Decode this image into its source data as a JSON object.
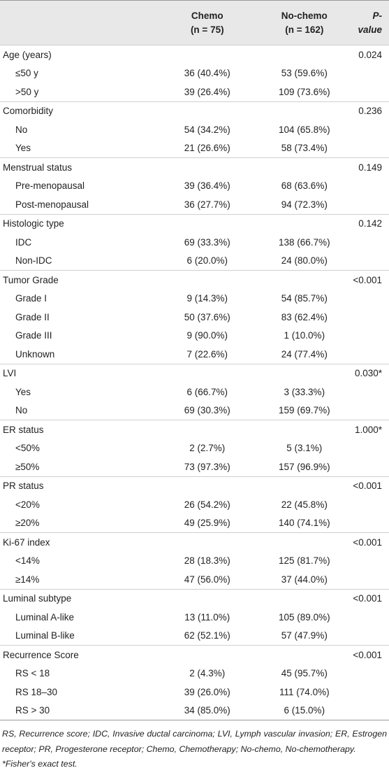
{
  "header": {
    "columns": [
      {
        "title": "Chemo",
        "sub": "(n = 75)"
      },
      {
        "title": "No-chemo",
        "sub": "(n = 162)"
      },
      {
        "title": "P-value"
      }
    ]
  },
  "table": {
    "groups": [
      {
        "label": "Age (years)",
        "p": "0.024",
        "rows": [
          [
            "≤50 y",
            "36 (40.4%)",
            "53 (59.6%)"
          ],
          [
            ">50 y",
            "39 (26.4%)",
            "109 (73.6%)"
          ]
        ]
      },
      {
        "label": "Comorbidity",
        "p": "0.236",
        "rows": [
          [
            "No",
            "54 (34.2%)",
            "104 (65.8%)"
          ],
          [
            "Yes",
            "21 (26.6%)",
            "58 (73.4%)"
          ]
        ]
      },
      {
        "label": "Menstrual status",
        "p": "0.149",
        "rows": [
          [
            "Pre-menopausal",
            "39 (36.4%)",
            "68 (63.6%)"
          ],
          [
            "Post-menopausal",
            "36 (27.7%)",
            "94 (72.3%)"
          ]
        ]
      },
      {
        "label": "Histologic type",
        "p": "0.142",
        "rows": [
          [
            "IDC",
            "69 (33.3%)",
            "138 (66.7%)"
          ],
          [
            "Non-IDC",
            "6 (20.0%)",
            "24 (80.0%)"
          ]
        ]
      },
      {
        "label": "Tumor Grade",
        "p": "<0.001",
        "rows": [
          [
            "Grade I",
            "9 (14.3%)",
            "54 (85.7%)"
          ],
          [
            "Grade II",
            "50 (37.6%)",
            "83 (62.4%)"
          ],
          [
            "Grade III",
            "9 (90.0%)",
            "1 (10.0%)"
          ],
          [
            "Unknown",
            "7 (22.6%)",
            "24 (77.4%)"
          ]
        ]
      },
      {
        "label": "LVI",
        "p": "0.030*",
        "rows": [
          [
            "Yes",
            "6 (66.7%)",
            "3 (33.3%)"
          ],
          [
            "No",
            "69 (30.3%)",
            "159 (69.7%)"
          ]
        ]
      },
      {
        "label": "ER status",
        "p": "1.000*",
        "rows": [
          [
            "<50%",
            "2 (2.7%)",
            "5 (3.1%)"
          ],
          [
            "≥50%",
            "73 (97.3%)",
            "157 (96.9%)"
          ]
        ]
      },
      {
        "label": "PR status",
        "p": "<0.001",
        "rows": [
          [
            "<20%",
            "26 (54.2%)",
            "22 (45.8%)"
          ],
          [
            "≥20%",
            "49 (25.9%)",
            "140 (74.1%)"
          ]
        ]
      },
      {
        "label": "Ki-67 index",
        "p": "<0.001",
        "rows": [
          [
            "<14%",
            "28 (18.3%)",
            "125 (81.7%)"
          ],
          [
            "≥14%",
            "47 (56.0%)",
            "37 (44.0%)"
          ]
        ]
      },
      {
        "label": "Luminal subtype",
        "p": "<0.001",
        "rows": [
          [
            "Luminal A-like",
            "13 (11.0%)",
            "105 (89.0%)"
          ],
          [
            "Luminal B-like",
            "62 (52.1%)",
            "57 (47.9%)"
          ]
        ]
      },
      {
        "label": "Recurrence Score",
        "p": "<0.001",
        "rows": [
          [
            "RS < 18",
            "2 (4.3%)",
            "45 (95.7%)"
          ],
          [
            "RS 18–30",
            "39 (26.0%)",
            "111 (74.0%)"
          ],
          [
            "RS > 30",
            "34 (85.0%)",
            "6 (15.0%)"
          ]
        ]
      }
    ]
  },
  "notes": [
    "RS, Recurrence score; IDC, Invasive ductal carcinoma; LVI, Lymph vascular invasion; ER, Estrogen receptor; PR, Progesterone receptor; Chemo, Chemotherapy; No-chemo, No-chemotherapy.",
    "*Fisher's exact test."
  ]
}
